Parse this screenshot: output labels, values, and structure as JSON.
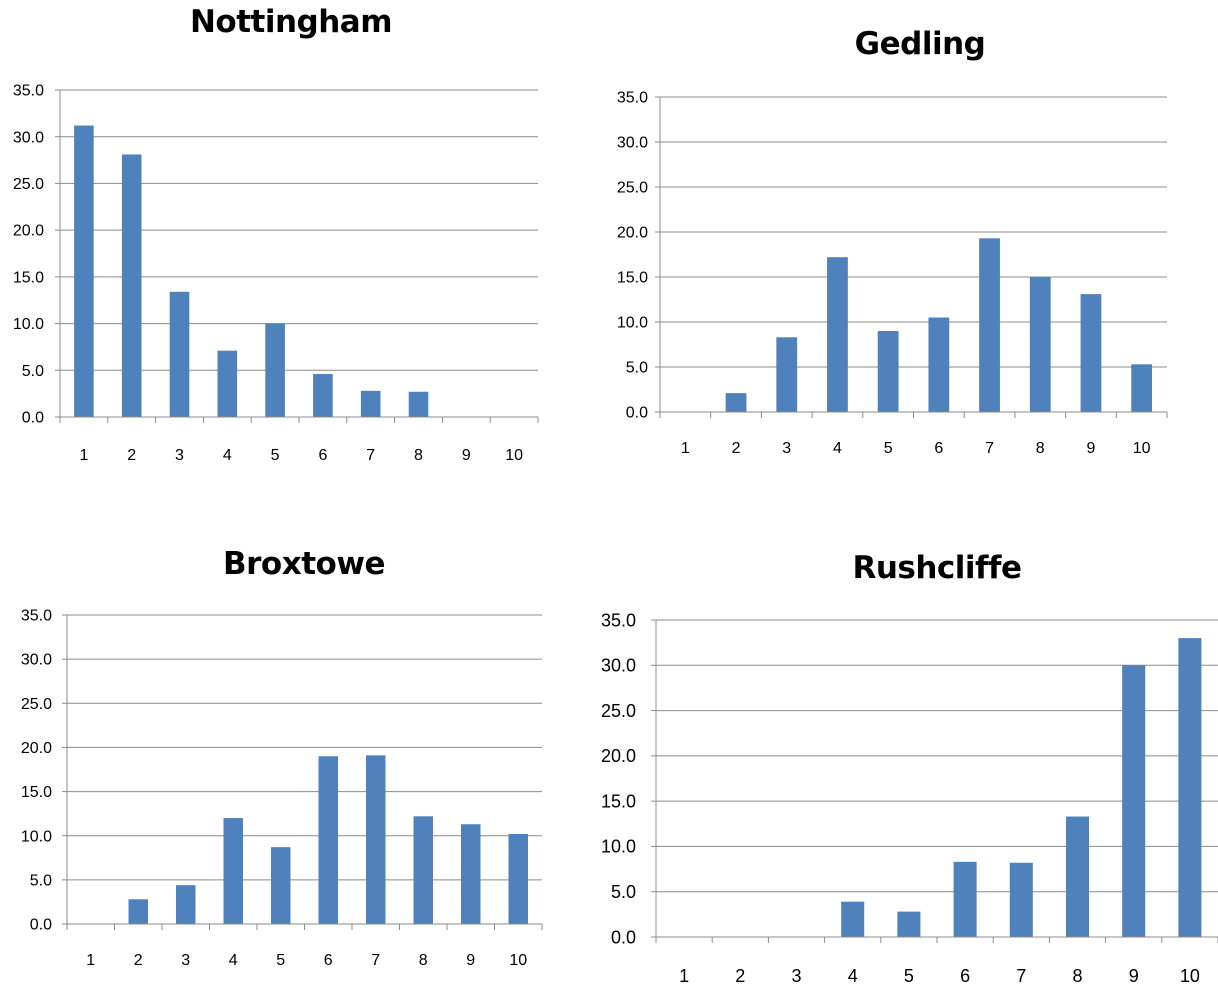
{
  "chart_data": [
    {
      "type": "bar",
      "title": "Nottingham",
      "categories": [
        "1",
        "2",
        "3",
        "4",
        "5",
        "6",
        "7",
        "8",
        "9",
        "10"
      ],
      "values": [
        31.2,
        28.1,
        13.4,
        7.1,
        10.0,
        4.6,
        2.8,
        2.7,
        0,
        0
      ],
      "yticks": [
        "0.0",
        "5.0",
        "10.0",
        "15.0",
        "20.0",
        "25.0",
        "30.0",
        "35.0"
      ],
      "ylim": [
        0,
        35
      ],
      "grid": true,
      "legend": "none",
      "color": "#4F81BD"
    },
    {
      "type": "bar",
      "title": "Gedling",
      "categories": [
        "1",
        "2",
        "3",
        "4",
        "5",
        "6",
        "7",
        "8",
        "9",
        "10"
      ],
      "values": [
        0,
        2.1,
        8.3,
        17.2,
        9.0,
        10.5,
        19.3,
        15.0,
        13.1,
        5.3
      ],
      "yticks": [
        "0.0",
        "5.0",
        "10.0",
        "15.0",
        "20.0",
        "25.0",
        "30.0",
        "35.0"
      ],
      "ylim": [
        0,
        35
      ],
      "grid": true,
      "legend": "none",
      "color": "#4F81BD"
    },
    {
      "type": "bar",
      "title": "Broxtowe",
      "categories": [
        "1",
        "2",
        "3",
        "4",
        "5",
        "6",
        "7",
        "8",
        "9",
        "10"
      ],
      "values": [
        0,
        2.8,
        4.4,
        12.0,
        8.7,
        19.0,
        19.1,
        12.2,
        11.3,
        10.2
      ],
      "yticks": [
        "0.0",
        "5.0",
        "10.0",
        "15.0",
        "20.0",
        "25.0",
        "30.0",
        "35.0"
      ],
      "ylim": [
        0,
        35
      ],
      "grid": true,
      "legend": "none",
      "color": "#4F81BD"
    },
    {
      "type": "bar",
      "title": "Rushcliffe",
      "categories": [
        "1",
        "2",
        "3",
        "4",
        "5",
        "6",
        "7",
        "8",
        "9",
        "10"
      ],
      "values": [
        0,
        0,
        0,
        3.9,
        2.8,
        8.3,
        8.2,
        13.3,
        30.0,
        33.0
      ],
      "yticks": [
        "0.0",
        "5.0",
        "10.0",
        "15.0",
        "20.0",
        "25.0",
        "30.0",
        "35.0"
      ],
      "ylim": [
        0,
        35
      ],
      "grid": true,
      "legend": "none",
      "color": "#4F81BD"
    }
  ]
}
